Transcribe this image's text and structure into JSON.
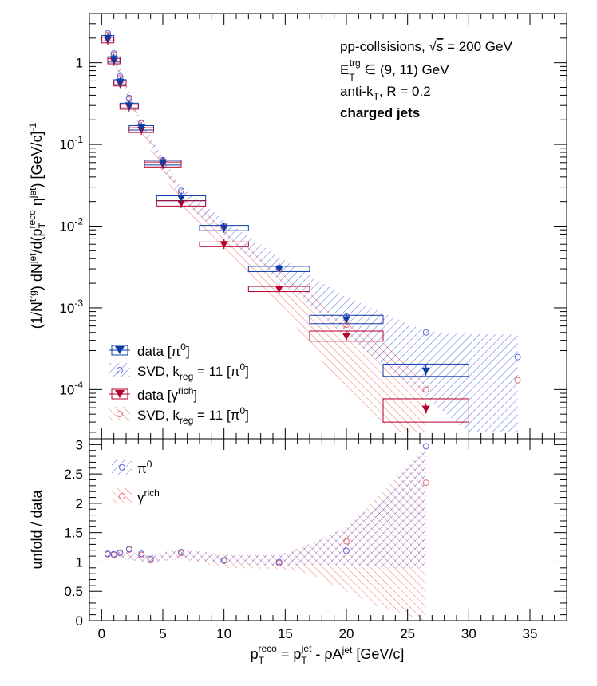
{
  "annotations": {
    "line1": "pp-collsisions, √s = 200 GeV",
    "line2": "E_T^trg ∈ (9, 11) GeV",
    "line3": "anti-k_T, R = 0.2",
    "line4": "charged jets"
  },
  "colors": {
    "pi0": "#0b3da8",
    "gamma": "#b3002d",
    "pi0_band": "#5a6ae0",
    "gamma_band": "#f07070"
  },
  "top_legend": [
    {
      "text": "data [π0]",
      "color": "#0b3da8"
    },
    {
      "text": "SVD, k_reg = 11 [π0]",
      "color": "#5a6ae0"
    },
    {
      "text": "data [γ rich]",
      "color": "#b3002d"
    },
    {
      "text": "SVD, k_reg = 11 [π0]",
      "color": "#f07070"
    }
  ],
  "bottom_legend": [
    {
      "text": "π0",
      "color": "#5a6ae0"
    },
    {
      "text": "γ rich",
      "color": "#f07070"
    }
  ],
  "chart_data": [
    {
      "type": "scatter",
      "panel": "top",
      "ylabel": "(1/N^trg) dN^jet/d(p_T^reco η^jet) [GeV/c]^-1",
      "yscale": "log",
      "ylim": [
        2.5e-05,
        4
      ],
      "xlim": [
        -1,
        38
      ],
      "ytick_labels": [
        "10^-4",
        "10^-3",
        "10^-2",
        "10^-1",
        "1"
      ],
      "data_pi0": [
        {
          "x": 0.5,
          "y": 2.0,
          "xw": 0.5,
          "yl": 1.85,
          "yh": 2.15
        },
        {
          "x": 1.0,
          "y": 1.1,
          "xw": 0.5,
          "yl": 1.02,
          "yh": 1.18
        },
        {
          "x": 1.5,
          "y": 0.58,
          "xw": 0.5,
          "yl": 0.54,
          "yh": 0.62
        },
        {
          "x": 2.25,
          "y": 0.3,
          "xw": 0.75,
          "yl": 0.28,
          "yh": 0.32
        },
        {
          "x": 3.25,
          "y": 0.16,
          "xw": 1.0,
          "yl": 0.15,
          "yh": 0.17
        },
        {
          "x": 5.0,
          "y": 0.06,
          "xw": 1.5,
          "yl": 0.056,
          "yh": 0.064
        },
        {
          "x": 6.5,
          "y": 0.022,
          "xw": 2.0,
          "yl": 0.0205,
          "yh": 0.0235
        },
        {
          "x": 10.0,
          "y": 0.0095,
          "xw": 2.0,
          "yl": 0.0088,
          "yh": 0.0102
        },
        {
          "x": 14.5,
          "y": 0.003,
          "xw": 2.5,
          "yl": 0.00278,
          "yh": 0.00322
        },
        {
          "x": 20.0,
          "y": 0.00072,
          "xw": 3.0,
          "yl": 0.00064,
          "yh": 0.00081
        },
        {
          "x": 26.5,
          "y": 0.00017,
          "xw": 3.5,
          "yl": 0.000145,
          "yh": 0.000205
        }
      ],
      "data_gamma": [
        {
          "x": 0.5,
          "y": 1.9,
          "xw": 0.5,
          "yl": 1.75,
          "yh": 2.05
        },
        {
          "x": 1.0,
          "y": 1.05,
          "xw": 0.5,
          "yl": 0.97,
          "yh": 1.13
        },
        {
          "x": 1.5,
          "y": 0.56,
          "xw": 0.5,
          "yl": 0.52,
          "yh": 0.6
        },
        {
          "x": 2.25,
          "y": 0.29,
          "xw": 0.75,
          "yl": 0.27,
          "yh": 0.31
        },
        {
          "x": 3.25,
          "y": 0.15,
          "xw": 1.0,
          "yl": 0.14,
          "yh": 0.16
        },
        {
          "x": 5.0,
          "y": 0.057,
          "xw": 1.5,
          "yl": 0.053,
          "yh": 0.061
        },
        {
          "x": 6.5,
          "y": 0.019,
          "xw": 2.0,
          "yl": 0.0176,
          "yh": 0.0204
        },
        {
          "x": 10.0,
          "y": 0.006,
          "xw": 2.0,
          "yl": 0.0056,
          "yh": 0.0064
        },
        {
          "x": 14.5,
          "y": 0.0017,
          "xw": 2.5,
          "yl": 0.00158,
          "yh": 0.00183
        },
        {
          "x": 20.0,
          "y": 0.00045,
          "xw": 3.0,
          "yl": 0.00039,
          "yh": 0.00052
        },
        {
          "x": 26.5,
          "y": 5.8e-05,
          "xw": 3.5,
          "yl": 4e-05,
          "yh": 7.7e-05
        }
      ],
      "svd_pi0_points": [
        {
          "x": 0.5,
          "y": 2.3
        },
        {
          "x": 1.0,
          "y": 1.3
        },
        {
          "x": 1.5,
          "y": 0.68
        },
        {
          "x": 2.25,
          "y": 0.37
        },
        {
          "x": 3.25,
          "y": 0.185
        },
        {
          "x": 5.0,
          "y": 0.064
        },
        {
          "x": 6.5,
          "y": 0.027
        },
        {
          "x": 10.0,
          "y": 0.0101
        },
        {
          "x": 14.5,
          "y": 0.0031
        },
        {
          "x": 20.0,
          "y": 0.00078
        },
        {
          "x": 26.5,
          "y": 0.0005
        },
        {
          "x": 34.0,
          "y": 0.00025
        }
      ],
      "svd_gamma_points": [
        {
          "x": 0.5,
          "y": 2.2
        },
        {
          "x": 1.0,
          "y": 1.25
        },
        {
          "x": 1.5,
          "y": 0.65
        },
        {
          "x": 2.25,
          "y": 0.36
        },
        {
          "x": 3.25,
          "y": 0.18
        },
        {
          "x": 5.0,
          "y": 0.062
        },
        {
          "x": 6.5,
          "y": 0.025
        },
        {
          "x": 10.0,
          "y": 0.0098
        },
        {
          "x": 14.5,
          "y": 0.003
        },
        {
          "x": 20.0,
          "y": 0.00062
        },
        {
          "x": 26.5,
          "y": 0.0001
        },
        {
          "x": 34.0,
          "y": 0.00013
        }
      ],
      "band_pi0": [
        {
          "x": 1.0,
          "lo": 1.02,
          "hi": 1.3
        },
        {
          "x": 3.25,
          "lo": 0.15,
          "hi": 0.19
        },
        {
          "x": 6.5,
          "lo": 0.021,
          "hi": 0.03
        },
        {
          "x": 10.0,
          "lo": 0.0075,
          "hi": 0.012
        },
        {
          "x": 14.5,
          "lo": 0.0022,
          "hi": 0.0042
        },
        {
          "x": 20.0,
          "lo": 0.00045,
          "hi": 0.00135
        },
        {
          "x": 26.5,
          "lo": 8e-05,
          "hi": 0.00052
        },
        {
          "x": 30.0,
          "lo": 3e-05,
          "hi": 0.00048
        },
        {
          "x": 34.0,
          "lo": 3e-05,
          "hi": 0.00047
        }
      ],
      "band_gamma": [
        {
          "x": 1.0,
          "lo": 1.0,
          "hi": 1.25
        },
        {
          "x": 3.25,
          "lo": 0.14,
          "hi": 0.18
        },
        {
          "x": 6.5,
          "lo": 0.017,
          "hi": 0.026
        },
        {
          "x": 10.0,
          "lo": 0.0055,
          "hi": 0.0095
        },
        {
          "x": 14.5,
          "lo": 0.0011,
          "hi": 0.0028
        },
        {
          "x": 20.0,
          "lo": 9e-05,
          "hi": 0.0007
        },
        {
          "x": 24.0,
          "lo": 3e-05,
          "hi": 0.0003
        },
        {
          "x": 26.5,
          "lo": 3e-05,
          "hi": 0.00012
        }
      ]
    },
    {
      "type": "scatter",
      "panel": "bottom",
      "xlabel": "p_T^reco = p_T^jet - ρA^jet [GeV/c]",
      "ylabel": "unfold / data",
      "xlim": [
        -1,
        38
      ],
      "ylim": [
        0,
        3.1
      ],
      "xticks": [
        0,
        5,
        10,
        15,
        20,
        25,
        30,
        35
      ],
      "yticks": [
        0,
        0.5,
        1,
        1.5,
        2,
        2.5,
        3
      ],
      "reference_line": 1,
      "ratio_pi0": [
        {
          "x": 0.5,
          "y": 1.14
        },
        {
          "x": 1.0,
          "y": 1.13
        },
        {
          "x": 1.5,
          "y": 1.16
        },
        {
          "x": 2.25,
          "y": 1.22
        },
        {
          "x": 3.25,
          "y": 1.14
        },
        {
          "x": 4.0,
          "y": 1.05
        },
        {
          "x": 6.5,
          "y": 1.17
        },
        {
          "x": 10.0,
          "y": 1.03
        },
        {
          "x": 14.5,
          "y": 1.0
        },
        {
          "x": 20.0,
          "y": 1.19
        },
        {
          "x": 26.5,
          "y": 2.97
        }
      ],
      "ratio_gamma": [
        {
          "x": 0.5,
          "y": 1.13
        },
        {
          "x": 1.0,
          "y": 1.12
        },
        {
          "x": 1.5,
          "y": 1.15
        },
        {
          "x": 2.25,
          "y": 1.21
        },
        {
          "x": 3.25,
          "y": 1.12
        },
        {
          "x": 4.0,
          "y": 1.03
        },
        {
          "x": 6.5,
          "y": 1.15
        },
        {
          "x": 10.0,
          "y": 1.02
        },
        {
          "x": 14.5,
          "y": 0.98
        },
        {
          "x": 20.0,
          "y": 1.35
        },
        {
          "x": 26.5,
          "y": 2.35
        }
      ],
      "ratio_band_pi0": [
        {
          "x": 0.5,
          "lo": 1.07,
          "hi": 1.2
        },
        {
          "x": 4.0,
          "lo": 1.0,
          "hi": 1.12
        },
        {
          "x": 6.5,
          "lo": 1.05,
          "hi": 1.22
        },
        {
          "x": 10.0,
          "lo": 0.98,
          "hi": 1.13
        },
        {
          "x": 14.5,
          "lo": 0.93,
          "hi": 1.12
        },
        {
          "x": 17.0,
          "lo": 0.95,
          "hi": 1.3
        },
        {
          "x": 20.0,
          "lo": 0.95,
          "hi": 1.6
        },
        {
          "x": 23.0,
          "lo": 0.9,
          "hi": 2.1
        },
        {
          "x": 26.5,
          "lo": 0.9,
          "hi": 3.0
        }
      ],
      "ratio_band_gamma": [
        {
          "x": 0.5,
          "lo": 1.07,
          "hi": 1.2
        },
        {
          "x": 4.0,
          "lo": 1.0,
          "hi": 1.12
        },
        {
          "x": 6.5,
          "lo": 1.05,
          "hi": 1.22
        },
        {
          "x": 10.0,
          "lo": 0.9,
          "hi": 1.12
        },
        {
          "x": 14.5,
          "lo": 0.88,
          "hi": 1.12
        },
        {
          "x": 17.0,
          "lo": 0.8,
          "hi": 1.3
        },
        {
          "x": 20.0,
          "lo": 0.5,
          "hi": 1.6
        },
        {
          "x": 23.0,
          "lo": 0.2,
          "hi": 2.2
        },
        {
          "x": 26.5,
          "lo": 0.0,
          "hi": 3.0
        }
      ]
    }
  ]
}
